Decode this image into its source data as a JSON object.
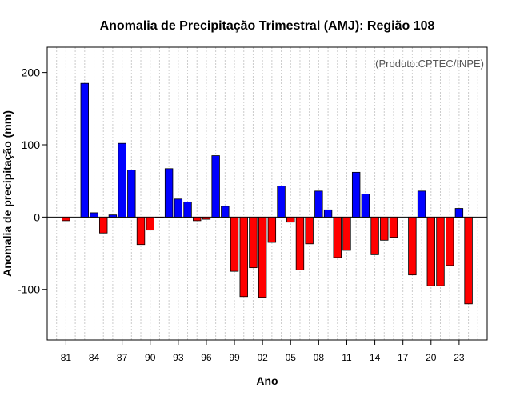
{
  "chart_data": {
    "type": "bar",
    "title": "Anomalia de Precipitação Trimestral (AMJ): Região 108",
    "xlabel": "Ano",
    "ylabel": "Anomalia de precipitação (mm)",
    "credit": "(Produto:CPTEC/INPE)",
    "ylim": [
      -170,
      235
    ],
    "yticks": [
      -100,
      0,
      100,
      200
    ],
    "yticklabels": [
      "-100",
      "0",
      "100",
      "200"
    ],
    "xlim": [
      1979,
      2026
    ],
    "x_tick_years": [
      1981,
      1984,
      1987,
      1990,
      1993,
      1996,
      1999,
      2002,
      2005,
      2008,
      2011,
      2014,
      2017,
      2020,
      2023
    ],
    "x_tick_labels": [
      "81",
      "84",
      "87",
      "90",
      "93",
      "96",
      "99",
      "02",
      "05",
      "08",
      "11",
      "14",
      "17",
      "20",
      "23"
    ],
    "grid": "vertical dotted, one per year",
    "positive_color": "#0000ff",
    "negative_color": "#ff0000",
    "years": [
      1981,
      1982,
      1983,
      1984,
      1985,
      1986,
      1987,
      1988,
      1989,
      1990,
      1991,
      1992,
      1993,
      1994,
      1995,
      1996,
      1997,
      1998,
      1999,
      2000,
      2001,
      2002,
      2003,
      2004,
      2005,
      2006,
      2007,
      2008,
      2009,
      2010,
      2011,
      2012,
      2013,
      2014,
      2015,
      2016,
      2017,
      2018,
      2019,
      2020,
      2021,
      2022,
      2023,
      2024
    ],
    "values": [
      -5,
      0,
      185,
      6,
      -22,
      3,
      102,
      65,
      -38,
      -18,
      -1,
      67,
      25,
      21,
      -5,
      -3,
      85,
      15,
      -75,
      -110,
      -70,
      -111,
      -35,
      43,
      -7,
      -73,
      -37,
      36,
      10,
      -56,
      -46,
      62,
      32,
      -52,
      -32,
      -28,
      0,
      -80,
      36,
      -95,
      -95,
      -67,
      12,
      -120
    ]
  }
}
